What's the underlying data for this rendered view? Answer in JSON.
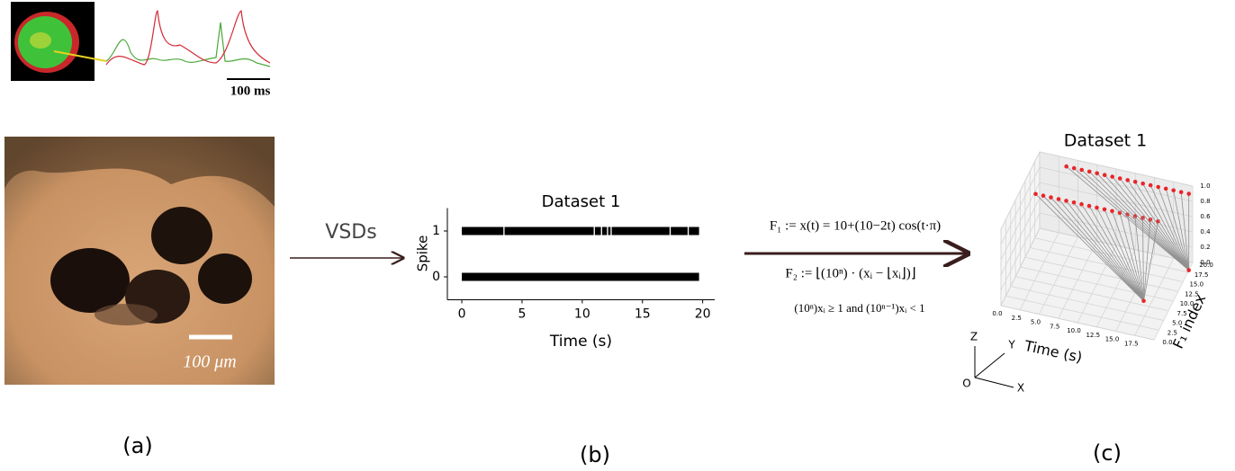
{
  "inset": {
    "scale_label": "100 ms"
  },
  "photo": {
    "scale_label": "100 μm"
  },
  "arrow_label": "VSDs",
  "formulas": [
    "F₁ := x(t) = 10+(10−2t) cos(t·π)",
    "F₂ := ⌊(10ⁿ) · (xᵢ − ⌊xᵢ⌋)⌋",
    "(10ⁿ)xᵢ ≥ 1 and (10ⁿ⁻¹)xᵢ < 1"
  ],
  "triad": {
    "z": "Z",
    "y": "Y",
    "x": "X",
    "origin": "O"
  },
  "panel_labels": [
    "(a)",
    "(b)",
    "(c)"
  ],
  "chart_data": [
    {
      "type": "raster",
      "title": "Dataset 1",
      "xlabel": "Time (s)",
      "ylabel": "Spike",
      "color": "#000000",
      "xlim": [
        -1.2,
        21
      ],
      "xticks": [
        0,
        5,
        10,
        15,
        20
      ],
      "ylim": [
        -0.5,
        1.5
      ],
      "yticks": [
        0,
        1
      ],
      "rows": [
        {
          "y": 1,
          "intervals": [
            [
              0,
              3.45
            ],
            [
              3.55,
              10.95
            ],
            [
              11.05,
              11.55
            ],
            [
              11.65,
              12.05
            ],
            [
              12.15,
              12.35
            ],
            [
              12.45,
              17.25
            ],
            [
              17.35,
              18.75
            ],
            [
              18.85,
              19.7
            ]
          ]
        },
        {
          "y": 0,
          "intervals": [
            [
              0,
              19.7
            ]
          ]
        }
      ]
    },
    {
      "type": "scatter3d",
      "title": "Dataset 1",
      "xlabel": "Time (s)",
      "ylabel": "F₁ index",
      "color": "#e8262a",
      "line_color": "#909090",
      "xlim": [
        0,
        20
      ],
      "ylim": [
        0,
        20
      ],
      "zlim": [
        0,
        1
      ],
      "xticks": [
        {
          "value": 0,
          "label": "0.0"
        },
        2.5,
        {
          "value": 5,
          "label": "5.0"
        },
        7.5,
        {
          "value": 10,
          "label": "10.0"
        },
        12.5,
        {
          "value": 15,
          "label": "15.0"
        },
        17.5
      ],
      "yticks": [
        {
          "value": 0,
          "label": "0.0"
        },
        2.5,
        {
          "value": 5,
          "label": "5.0"
        },
        7.5,
        {
          "value": 10,
          "label": "10.0"
        },
        12.5,
        {
          "value": 15,
          "label": "15.0"
        },
        17.5,
        {
          "value": 20,
          "label": "20.0"
        }
      ],
      "zticks": [
        {
          "value": 0,
          "label": "0.0"
        },
        0.2,
        0.4,
        0.6,
        0.8,
        {
          "value": 1,
          "label": "1.0"
        }
      ],
      "groups": [
        {
          "x": [
            2,
            3,
            4,
            5,
            6,
            7,
            8,
            9,
            10,
            11,
            12,
            13,
            14,
            15,
            16,
            17,
            18
          ],
          "y": [
            10,
            10,
            10,
            10,
            10,
            10,
            10,
            10,
            10,
            10,
            10,
            10,
            10,
            10,
            10,
            10,
            10
          ],
          "z": [
            1,
            1,
            1,
            1,
            1,
            1,
            1,
            1,
            1,
            1,
            1,
            1,
            1,
            1,
            1,
            1,
            1
          ],
          "apex": {
            "x": 16.5,
            "y": 8.5,
            "z": 0
          }
        },
        {
          "x": [
            4,
            5,
            6,
            7,
            8,
            9,
            10,
            11,
            12,
            13,
            14,
            15,
            16,
            17,
            18,
            19,
            20
          ],
          "y": [
            18,
            18,
            18,
            18,
            18,
            18,
            18,
            18,
            18,
            18,
            18,
            18,
            18,
            18,
            18,
            18,
            18
          ],
          "z": [
            1,
            1,
            1,
            1,
            1,
            1,
            1,
            1,
            1,
            1,
            1,
            1,
            1,
            1,
            1,
            1,
            1
          ],
          "apex": {
            "x": 20,
            "y": 18,
            "z": 0
          }
        }
      ]
    }
  ]
}
